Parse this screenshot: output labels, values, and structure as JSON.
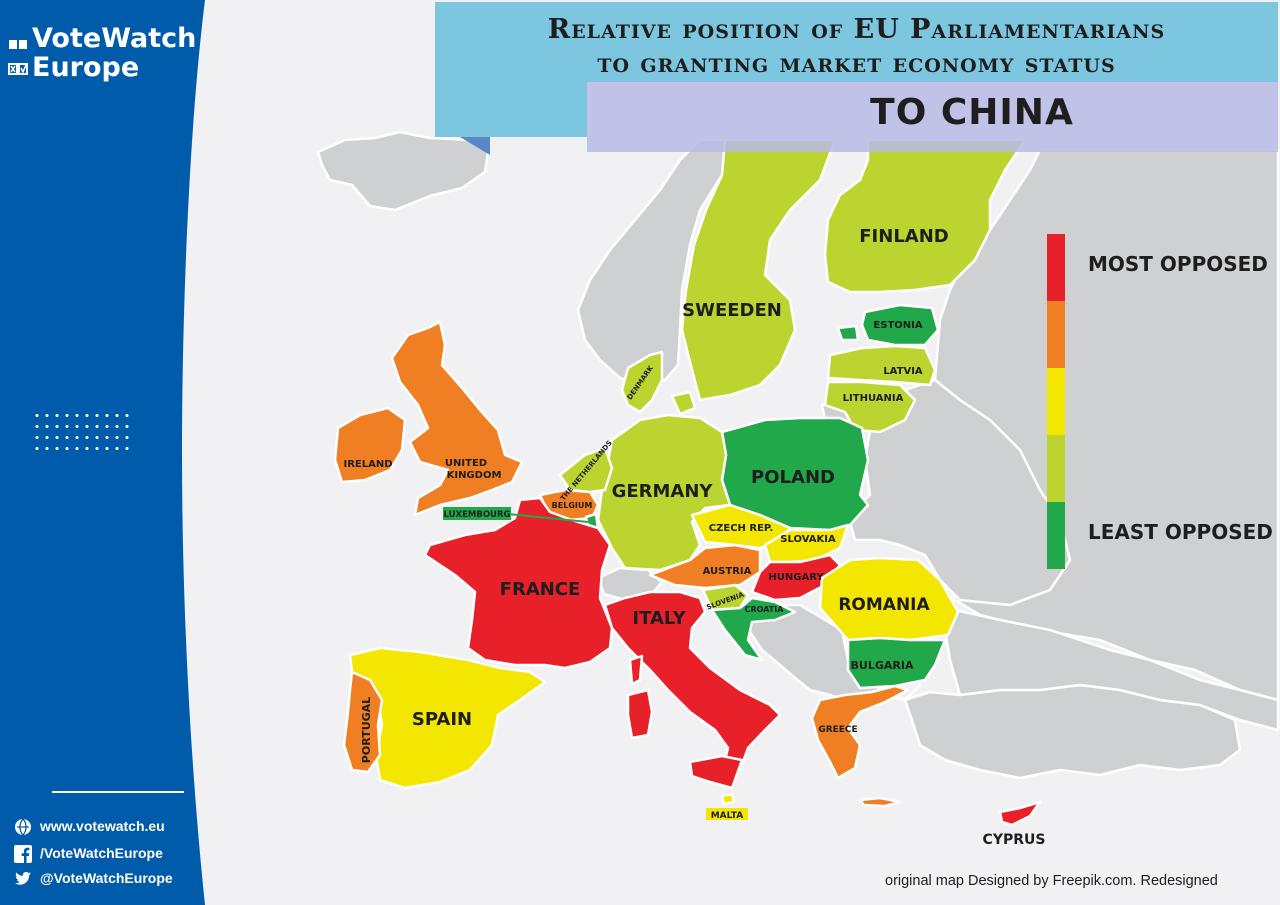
{
  "brand": {
    "line1": "VoteWatch",
    "line2": "Europe"
  },
  "title": {
    "line1": "Relative position of EU Parliamentarians",
    "line2": "to granting market economy status",
    "subtitle": "TO  CHINA"
  },
  "legend": {
    "most_label": "MOST OPPOSED",
    "least_label": "LEAST OPPOSED",
    "scale": [
      {
        "level": 1,
        "color": "#e8202a"
      },
      {
        "level": 2,
        "color": "#f07e22"
      },
      {
        "level": 3,
        "color": "#f3e600"
      },
      {
        "level": 4,
        "color": "#bcd430"
      },
      {
        "level": 5,
        "color": "#21a84a"
      }
    ]
  },
  "countries": {
    "united_kingdom": {
      "label": "UNITED KINGDOM",
      "position": "Orange",
      "color": "#f07e22"
    },
    "ireland": {
      "label": "IRELAND",
      "position": "Orange",
      "color": "#f07e22"
    },
    "france": {
      "label": "FRANCE",
      "position": "Red",
      "color": "#e8202a"
    },
    "spain": {
      "label": "SPAIN",
      "position": "Yellow",
      "color": "#f3e600"
    },
    "portugal": {
      "label": "PORTUGAL",
      "position": "Orange",
      "color": "#f07e22"
    },
    "italy": {
      "label": "ITALY",
      "position": "Red",
      "color": "#e8202a"
    },
    "malta": {
      "label": "MALTA",
      "position": "Yellow",
      "color": "#f3e600"
    },
    "germany": {
      "label": "GERMANY",
      "position": "Light green",
      "color": "#bcd430"
    },
    "poland": {
      "label": "POLAND",
      "position": "Green",
      "color": "#21a84a"
    },
    "sweden": {
      "label": "SWEEDEN",
      "position": "Light green",
      "color": "#bcd430"
    },
    "finland": {
      "label": "FINLAND",
      "position": "Light green",
      "color": "#bcd430"
    },
    "estonia": {
      "label": "ESTONIA",
      "position": "Green",
      "color": "#21a84a"
    },
    "latvia": {
      "label": "LATVIA",
      "position": "Light green",
      "color": "#bcd430"
    },
    "lithuania": {
      "label": "LITHUANIA",
      "position": "Light green",
      "color": "#bcd430"
    },
    "denmark": {
      "label": "DENMARK",
      "position": "Light green",
      "color": "#bcd430"
    },
    "netherlands": {
      "label": "THE NETHERLANDS",
      "position": "Light green",
      "color": "#bcd430"
    },
    "belgium": {
      "label": "BELGIUM",
      "position": "Orange",
      "color": "#f07e22"
    },
    "luxembourg": {
      "label": "LUXEMBOURG",
      "position": "Green",
      "color": "#21a84a"
    },
    "czech": {
      "label": "CZECH REP.",
      "position": "Yellow",
      "color": "#f3e600"
    },
    "slovakia": {
      "label": "SLOVAKIA",
      "position": "Yellow",
      "color": "#f3e600"
    },
    "austria": {
      "label": "AUSTRIA",
      "position": "Orange",
      "color": "#f07e22"
    },
    "hungary": {
      "label": "HUNGARY",
      "position": "Red",
      "color": "#e8202a"
    },
    "slovenia": {
      "label": "SLOVENIA",
      "position": "Light green",
      "color": "#bcd430"
    },
    "croatia": {
      "label": "CROATIA",
      "position": "Green",
      "color": "#21a84a"
    },
    "romania": {
      "label": "ROMANIA",
      "position": "Yellow",
      "color": "#f3e600"
    },
    "bulgaria": {
      "label": "BULGARIA",
      "position": "Green",
      "color": "#21a84a"
    },
    "greece": {
      "label": "GREECE",
      "position": "Orange",
      "color": "#f07e22"
    },
    "cyprus": {
      "label": "CYPRUS",
      "position": "Red",
      "color": "#e8202a"
    }
  },
  "social": {
    "website": "www.votewatch.eu",
    "facebook": "/VoteWatchEurope",
    "twitter": "@VoteWatchEurope"
  },
  "credit": "original map Designed by Freepik.com. Redesigned",
  "colors": {
    "sidebar": "#005baa",
    "title_bar": "#7dc6df",
    "subtitle_bar": "#b7bbe4",
    "non_eu": "#cfd0d2"
  }
}
